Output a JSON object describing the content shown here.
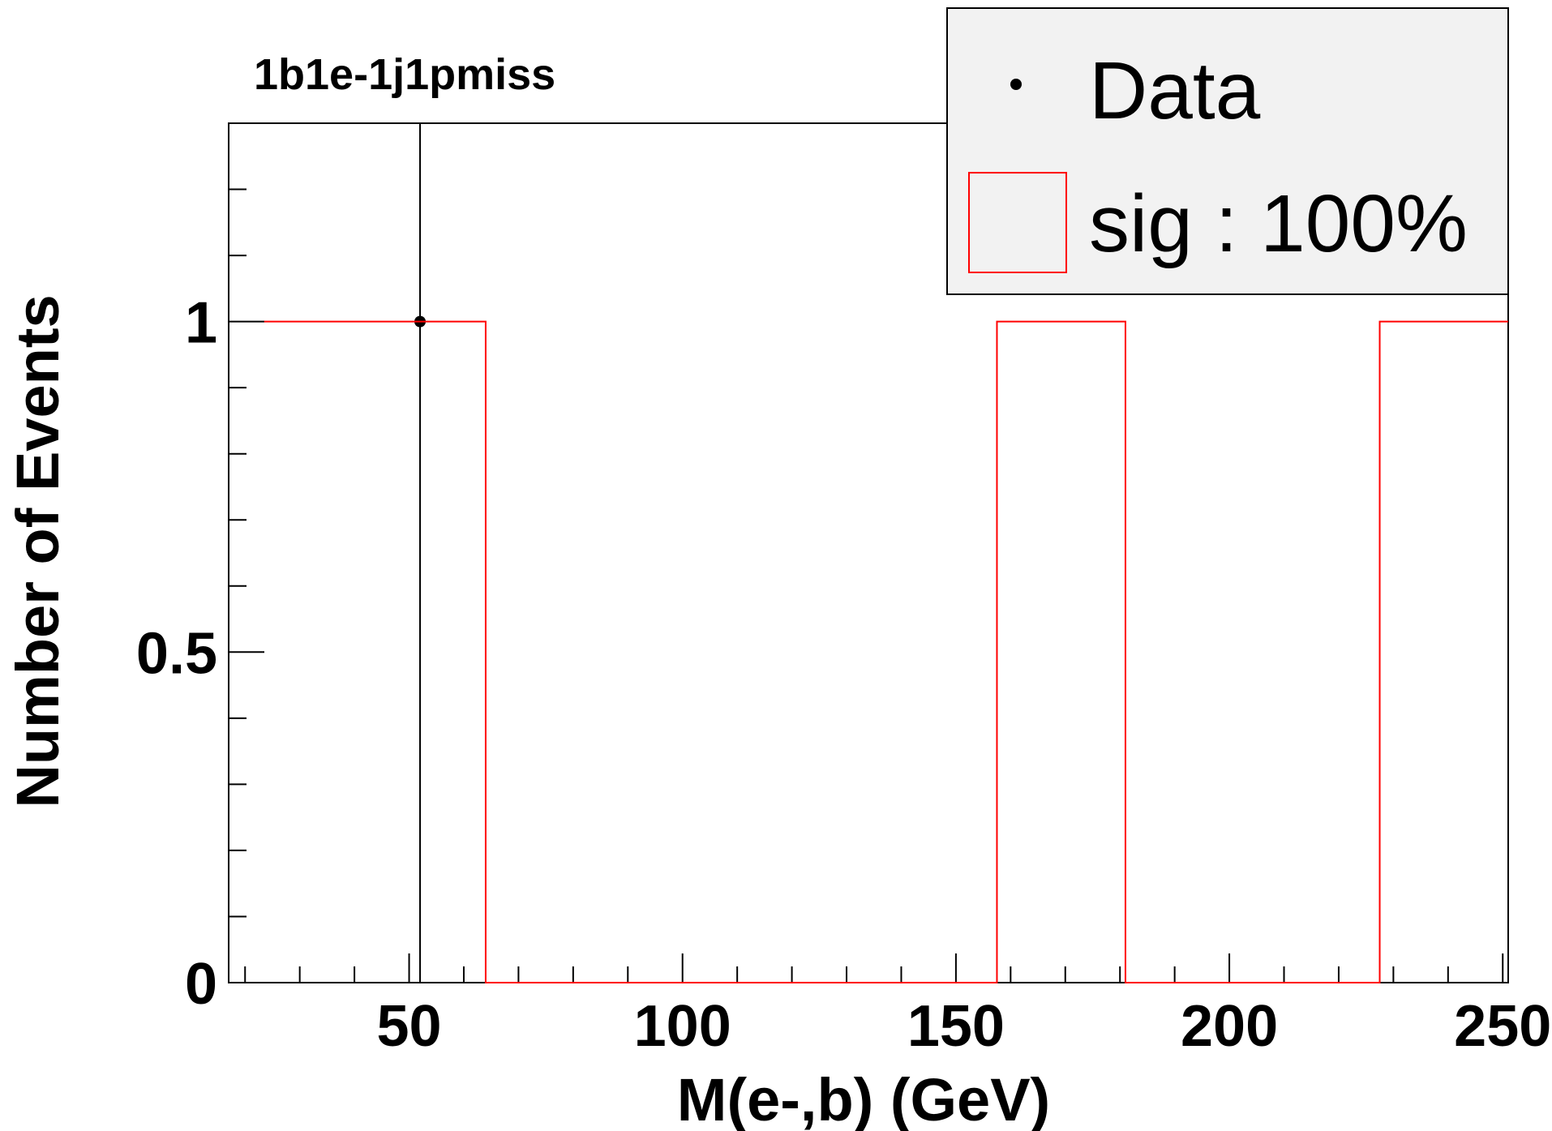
{
  "chart_data": {
    "type": "histogram",
    "title": "1b1e-1j1pmiss",
    "xlabel": "M(e-,b) (GeV)",
    "ylabel": "Number of Events",
    "xlim": [
      17,
      251
    ],
    "ylim": [
      0,
      1.3
    ],
    "x_ticks": [
      "50",
      "100",
      "150",
      "200",
      "250"
    ],
    "y_ticks": [
      "0",
      "0.5",
      "1"
    ],
    "grid": false,
    "legend_position": "top-right",
    "series": [
      {
        "name": "Data",
        "kind": "points",
        "color": "#000000",
        "points": [
          {
            "x": 52,
            "y": 1
          }
        ]
      },
      {
        "name": "sig : 100%",
        "kind": "histogram",
        "color": "#ff0000",
        "bins": [
          {
            "x0": 23.5,
            "x1": 64,
            "y": 1
          },
          {
            "x0": 64,
            "x1": 157.5,
            "y": 0
          },
          {
            "x0": 157.5,
            "x1": 181,
            "y": 1
          },
          {
            "x0": 181,
            "x1": 227.5,
            "y": 0
          },
          {
            "x0": 227.5,
            "x1": 251,
            "y": 1
          }
        ]
      }
    ]
  },
  "legend": {
    "data_label": "Data",
    "sig_label": "sig : 100%"
  }
}
